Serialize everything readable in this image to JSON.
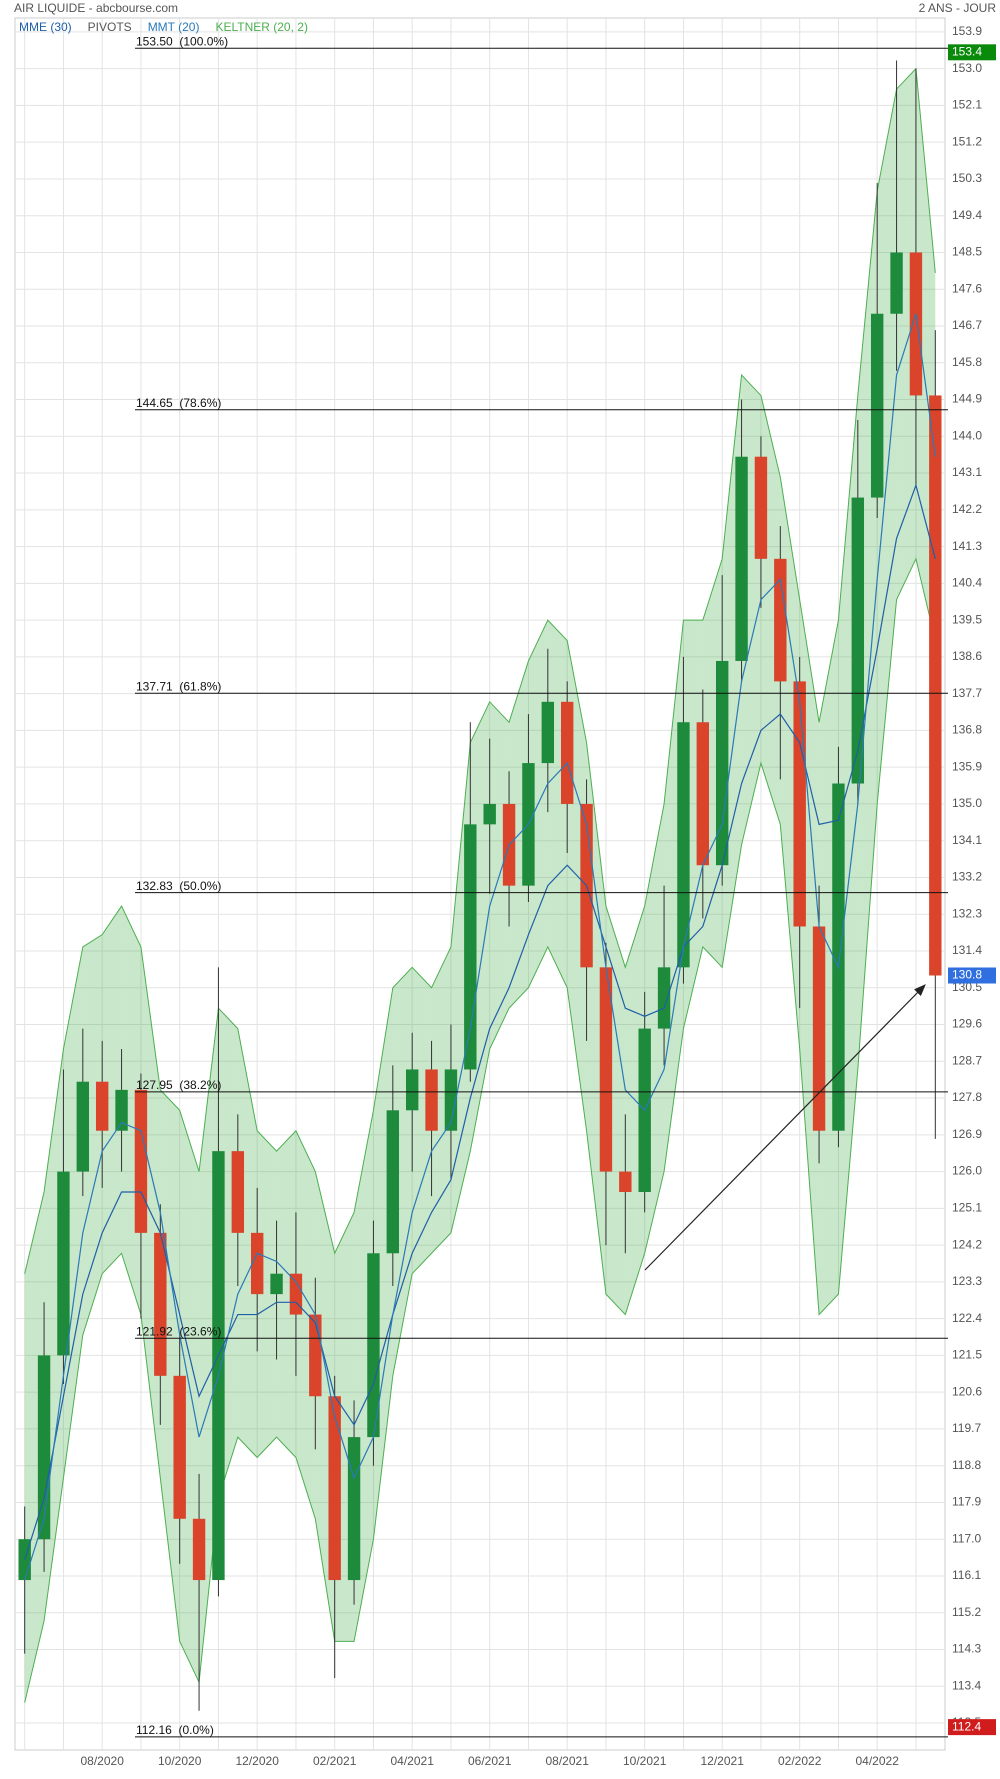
{
  "header": {
    "source": "AIR LIQUIDE - abcbourse.com",
    "period": "2 ANS - JOUR"
  },
  "chart_data": {
    "type": "candlestick",
    "categories": [
      null,
      null,
      null,
      null,
      "08/2020",
      null,
      null,
      null,
      "10/2020",
      null,
      null,
      null,
      "12/2020",
      null,
      null,
      null,
      "02/2021",
      null,
      null,
      null,
      "04/2021",
      null,
      null,
      null,
      "06/2021",
      null,
      null,
      null,
      "08/2021",
      null,
      null,
      null,
      "10/2021",
      null,
      null,
      null,
      "12/2021",
      null,
      null,
      null,
      "02/2022",
      null,
      null,
      null,
      "04/2022",
      null,
      null,
      null
    ],
    "open": [
      116.0,
      117.0,
      121.5,
      126.0,
      128.2,
      127.0,
      128.0,
      124.5,
      121.0,
      117.5,
      116.0,
      126.5,
      124.5,
      123.0,
      123.5,
      122.5,
      120.5,
      116.0,
      119.5,
      124.0,
      127.5,
      128.5,
      127.0,
      128.5,
      134.5,
      135.0,
      133.0,
      136.0,
      137.5,
      135.0,
      131.0,
      126.0,
      125.5,
      129.5,
      131.0,
      137.0,
      133.5,
      138.5,
      143.5,
      141.0,
      138.0,
      132.0,
      127.0,
      135.5,
      142.5,
      147.0,
      148.5,
      145.0
    ],
    "high": [
      117.8,
      122.8,
      128.5,
      129.5,
      129.2,
      129.0,
      128.4,
      125.2,
      122.0,
      118.6,
      131.0,
      127.4,
      125.6,
      124.8,
      125.0,
      123.4,
      121.0,
      120.4,
      124.8,
      128.6,
      129.4,
      129.2,
      129.6,
      137.0,
      136.6,
      135.8,
      137.2,
      138.8,
      138.0,
      135.6,
      131.6,
      127.4,
      130.4,
      133.0,
      138.6,
      137.8,
      140.6,
      144.9,
      144.0,
      141.8,
      138.6,
      133.0,
      136.4,
      144.4,
      150.2,
      153.2,
      153.0,
      146.6
    ],
    "low": [
      114.2,
      116.2,
      120.8,
      125.4,
      125.6,
      126.0,
      122.4,
      119.8,
      116.4,
      112.8,
      115.6,
      123.2,
      121.6,
      121.4,
      121.0,
      119.2,
      113.6,
      115.4,
      118.8,
      123.2,
      126.0,
      125.4,
      125.8,
      128.2,
      132.8,
      132.0,
      132.6,
      134.8,
      133.8,
      129.2,
      124.2,
      124.0,
      125.0,
      128.6,
      130.6,
      132.2,
      133.0,
      138.0,
      139.8,
      135.6,
      130.0,
      126.2,
      126.6,
      135.0,
      142.0,
      145.6,
      142.8,
      126.8
    ],
    "close": [
      117.0,
      121.5,
      126.0,
      128.2,
      127.0,
      128.0,
      124.5,
      121.0,
      117.5,
      116.0,
      126.5,
      124.5,
      123.0,
      123.5,
      122.5,
      120.5,
      116.0,
      119.5,
      124.0,
      127.5,
      128.5,
      127.0,
      128.5,
      134.5,
      135.0,
      133.0,
      136.0,
      137.5,
      135.0,
      131.0,
      126.0,
      125.5,
      129.5,
      131.0,
      137.0,
      133.5,
      138.5,
      143.5,
      141.0,
      138.0,
      132.0,
      127.0,
      135.5,
      142.5,
      147.0,
      148.5,
      145.0,
      130.8
    ],
    "up_color": "#1e8a3c",
    "down_color": "#d9442b",
    "series": [
      {
        "name": "MME (30)",
        "color": "#1f5fa8",
        "values": [
          116.5,
          118.0,
          120.5,
          123.0,
          124.5,
          125.5,
          125.5,
          124.5,
          122.5,
          120.5,
          121.5,
          122.5,
          122.5,
          122.8,
          122.8,
          122.3,
          120.5,
          119.8,
          120.8,
          122.5,
          124.0,
          125.0,
          125.8,
          127.8,
          129.5,
          130.5,
          131.8,
          133.0,
          133.5,
          133.0,
          131.5,
          130.0,
          129.8,
          130.0,
          131.5,
          132.0,
          133.5,
          135.5,
          136.8,
          137.2,
          136.5,
          134.5,
          134.6,
          136.3,
          138.8,
          141.5,
          142.8,
          141.0
        ]
      },
      {
        "name": "PIVOTS",
        "color": "#555555"
      },
      {
        "name": "MMT (20)",
        "color": "#2a7ab8",
        "values": [
          116.0,
          117.5,
          121.0,
          124.5,
          126.5,
          127.2,
          127.0,
          125.0,
          122.0,
          119.5,
          121.0,
          123.0,
          124.0,
          123.8,
          123.3,
          122.5,
          120.0,
          118.5,
          119.5,
          122.5,
          125.0,
          126.5,
          127.2,
          129.5,
          132.5,
          134.0,
          134.5,
          135.5,
          136.0,
          134.5,
          131.0,
          128.0,
          127.5,
          128.5,
          131.5,
          133.5,
          134.5,
          138.0,
          140.0,
          140.5,
          137.5,
          132.0,
          131.0,
          135.0,
          140.5,
          145.5,
          147.0,
          143.5
        ]
      },
      {
        "name": "KELTNER (20, 2)",
        "color": "#4caf50",
        "upper": [
          123.5,
          125.5,
          129.0,
          131.5,
          131.8,
          132.5,
          131.5,
          128.0,
          127.5,
          126.0,
          130.0,
          129.5,
          127.0,
          126.5,
          127.0,
          126.0,
          124.0,
          125.0,
          127.5,
          130.5,
          131.0,
          130.5,
          131.5,
          136.5,
          137.5,
          137.0,
          138.5,
          139.5,
          139.0,
          136.5,
          132.5,
          131.0,
          132.5,
          135.0,
          139.5,
          139.5,
          141.0,
          145.5,
          145.0,
          143.0,
          140.0,
          137.0,
          139.5,
          145.0,
          150.0,
          152.5,
          153.0,
          148.0
        ],
        "lower": [
          113.0,
          115.0,
          118.5,
          122.0,
          123.5,
          124.0,
          122.5,
          118.5,
          114.5,
          113.5,
          118.0,
          119.5,
          119.0,
          119.5,
          119.0,
          117.5,
          114.5,
          114.5,
          117.0,
          121.0,
          123.5,
          124.0,
          124.5,
          126.5,
          129.0,
          130.0,
          130.5,
          131.5,
          130.5,
          127.0,
          123.0,
          122.5,
          124.0,
          126.0,
          129.5,
          131.5,
          131.0,
          134.0,
          136.0,
          134.5,
          129.0,
          122.5,
          123.0,
          128.5,
          135.0,
          140.0,
          141.0,
          139.0
        ]
      }
    ],
    "levels": [
      {
        "value": 153.5,
        "label": "153.50  (100.0%)"
      },
      {
        "value": 144.65,
        "label": "144.65  (78.6%)"
      },
      {
        "value": 137.71,
        "label": "137.71  (61.8%)"
      },
      {
        "value": 132.83,
        "label": "132.83  (50.0%)"
      },
      {
        "value": 127.95,
        "label": "127.95  (38.2%)"
      },
      {
        "value": 121.92,
        "label": "121.92  (23.6%)"
      },
      {
        "value": 112.16,
        "label": "112.16  (0.0%)"
      }
    ],
    "price_tags": [
      {
        "value": 153.4,
        "color": "#0a8a0a"
      },
      {
        "value": 130.8,
        "color": "#2f6fe0"
      },
      {
        "value": 112.4,
        "color": "#d01c1c"
      }
    ],
    "ylim": [
      111.84,
      154.24
    ],
    "yticks": [
      153.9,
      {
        "value": 153.0,
        "label": "153.0"
      },
      152.1,
      151.2,
      150.3,
      149.4,
      148.5,
      147.6,
      146.7,
      145.8,
      144.9,
      {
        "value": 144.0,
        "label": "144.0"
      },
      143.1,
      142.2,
      141.3,
      140.4,
      139.5,
      138.6,
      137.7,
      136.8,
      135.9,
      {
        "value": 135.0,
        "label": "135.0"
      },
      134.1,
      133.2,
      132.3,
      131.4,
      130.5,
      129.6,
      128.7,
      127.8,
      126.9,
      {
        "value": 126.0,
        "label": "126.0"
      },
      125.1,
      124.2,
      123.3,
      122.4,
      121.5,
      120.6,
      119.7,
      118.8,
      117.9,
      {
        "value": 117.0,
        "label": "117.0"
      },
      116.1,
      115.2,
      114.3,
      113.4,
      112.5
    ],
    "grid": true
  }
}
